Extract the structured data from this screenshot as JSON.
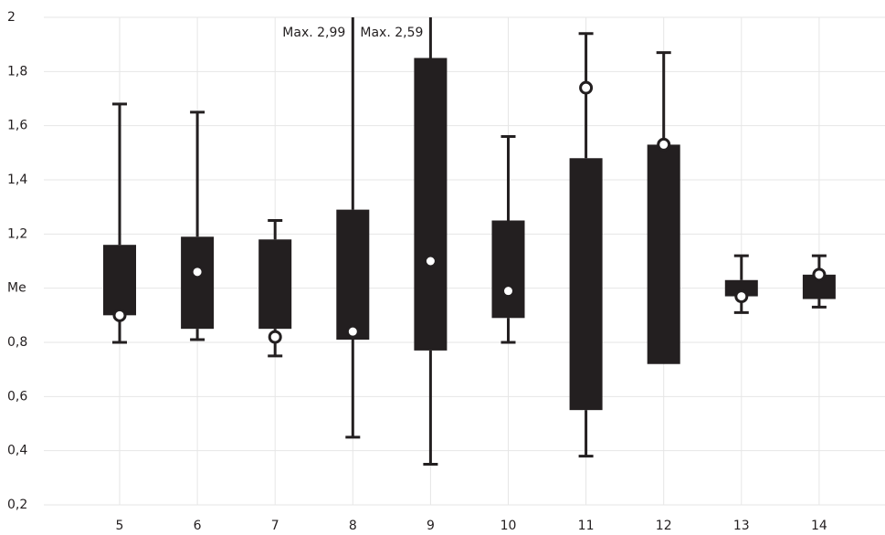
{
  "chart_data": {
    "type": "box",
    "categories": [
      "5",
      "6",
      "7",
      "8",
      "9",
      "10",
      "11",
      "12",
      "13",
      "14"
    ],
    "whisker_low": [
      0.8,
      0.81,
      0.75,
      0.45,
      0.35,
      0.8,
      0.38,
      null,
      0.91,
      0.93
    ],
    "q1": [
      0.9,
      0.85,
      0.85,
      0.81,
      0.77,
      0.89,
      0.55,
      0.72,
      0.97,
      0.96
    ],
    "q3": [
      1.16,
      1.19,
      1.18,
      1.29,
      1.85,
      1.25,
      1.48,
      1.53,
      1.03,
      1.05
    ],
    "whisker_high": [
      1.68,
      1.65,
      1.25,
      2.99,
      2.59,
      1.56,
      1.94,
      1.87,
      1.12,
      1.12
    ],
    "high_labels": [
      null,
      null,
      null,
      "Max. 2,99",
      "Max. 2,59",
      null,
      null,
      null,
      null,
      null
    ],
    "points": [
      0.9,
      1.06,
      0.82,
      0.84,
      1.1,
      0.99,
      1.74,
      1.53,
      0.97,
      1.05
    ],
    "color": "#231f20",
    "ylim": [
      0.2,
      2
    ],
    "yticks": [
      {
        "value": 0.2,
        "label": "0,2"
      },
      {
        "value": 0.4,
        "label": "0,4"
      },
      {
        "value": 0.6,
        "label": "0,6"
      },
      {
        "value": 0.8,
        "label": "0,8"
      },
      {
        "value": 1,
        "label": "Me"
      },
      {
        "value": 1.2,
        "label": "1,2"
      },
      {
        "value": 1.4,
        "label": "1,4"
      },
      {
        "value": 1.6,
        "label": "1,6"
      },
      {
        "value": 1.8,
        "label": "1,8"
      },
      2
    ],
    "grid": true
  }
}
